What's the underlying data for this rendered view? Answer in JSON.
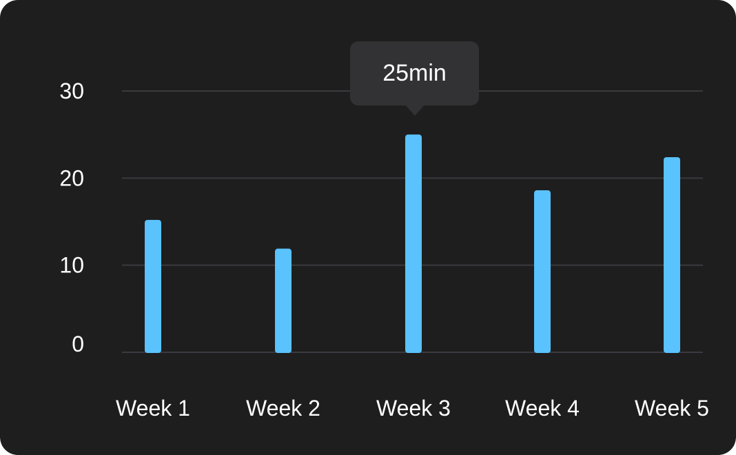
{
  "chart_data": {
    "type": "bar",
    "categories": [
      "Week 1",
      "Week 2",
      "Week 3",
      "Week 4",
      "Week 5"
    ],
    "values": [
      15.2,
      11.9,
      25,
      18.6,
      22.4
    ],
    "ylim": [
      0,
      30
    ],
    "yticks": [
      0,
      10,
      20,
      30
    ],
    "ytick_labels": [
      "0",
      "10",
      "20",
      "30"
    ],
    "grid": true,
    "bar_color": "#5ac2fd",
    "tooltip": {
      "category": "Week 3",
      "label": "25min"
    }
  }
}
